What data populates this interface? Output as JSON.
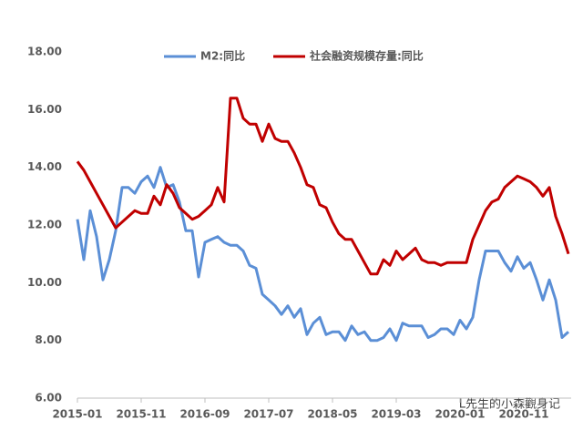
{
  "chart_data": {
    "type": "line",
    "categories": [
      "2015-01",
      null,
      null,
      null,
      null,
      null,
      null,
      null,
      null,
      null,
      "2015-11",
      null,
      null,
      null,
      null,
      null,
      null,
      null,
      null,
      null,
      "2016-09",
      null,
      null,
      null,
      null,
      null,
      null,
      null,
      null,
      null,
      "2017-07",
      null,
      null,
      null,
      null,
      null,
      null,
      null,
      null,
      null,
      "2018-05",
      null,
      null,
      null,
      null,
      null,
      null,
      null,
      null,
      null,
      "2019-03",
      null,
      null,
      null,
      null,
      null,
      null,
      null,
      null,
      null,
      "2020-01",
      null,
      null,
      null,
      null,
      null,
      null,
      null,
      null,
      null,
      "2020-11",
      null,
      null,
      null,
      null,
      null,
      null,
      null
    ],
    "series": [
      {
        "name": "M2:同比",
        "color": "#5b8fd6",
        "values": [
          12.2,
          10.8,
          12.5,
          11.6,
          10.1,
          10.8,
          11.8,
          13.3,
          13.3,
          13.1,
          13.5,
          13.7,
          13.3,
          14.0,
          13.3,
          13.4,
          12.8,
          11.8,
          11.8,
          10.2,
          11.4,
          11.5,
          11.6,
          11.4,
          11.3,
          11.3,
          11.1,
          10.6,
          10.5,
          9.6,
          9.4,
          9.2,
          8.9,
          9.2,
          8.8,
          9.1,
          8.2,
          8.6,
          8.8,
          8.2,
          8.3,
          8.3,
          8.0,
          8.5,
          8.2,
          8.3,
          8.0,
          8.0,
          8.1,
          8.4,
          8.0,
          8.6,
          8.5,
          8.5,
          8.5,
          8.1,
          8.2,
          8.4,
          8.4,
          8.2,
          8.7,
          8.4,
          8.8,
          10.1,
          11.1,
          11.1,
          11.1,
          10.7,
          10.4,
          10.9,
          10.5,
          10.7,
          10.1,
          9.4,
          10.1,
          9.4,
          8.1,
          8.3
        ]
      },
      {
        "name": "社会融资规模存量:同比",
        "color": "#c00000",
        "values": [
          14.2,
          13.9,
          13.5,
          13.1,
          12.7,
          12.3,
          11.9,
          12.1,
          12.3,
          12.5,
          12.4,
          12.4,
          13.0,
          12.7,
          13.4,
          13.1,
          12.6,
          12.4,
          12.2,
          12.3,
          12.5,
          12.7,
          13.3,
          12.8,
          16.4,
          16.4,
          15.7,
          15.5,
          15.5,
          14.9,
          15.5,
          15.0,
          14.9,
          14.9,
          14.5,
          14.0,
          13.4,
          13.3,
          12.7,
          12.6,
          12.1,
          11.7,
          11.5,
          11.5,
          11.1,
          10.7,
          10.3,
          10.3,
          10.8,
          10.6,
          11.1,
          10.8,
          11.0,
          11.2,
          10.8,
          10.7,
          10.7,
          10.6,
          10.7,
          10.7,
          10.7,
          10.7,
          11.5,
          12.0,
          12.5,
          12.8,
          12.9,
          13.3,
          13.5,
          13.7,
          13.6,
          13.5,
          13.3,
          13.0,
          13.3,
          12.3,
          11.7,
          11.0
        ]
      }
    ],
    "ylim": [
      6,
      18
    ],
    "yticks": [
      {
        "value": 6,
        "label": "6.00"
      },
      {
        "value": 8,
        "label": "8.00"
      },
      {
        "value": 10,
        "label": "10.00"
      },
      {
        "value": 12,
        "label": "12.00"
      },
      {
        "value": 14,
        "label": "14.00"
      },
      {
        "value": 16,
        "label": "16.00"
      },
      {
        "value": 18,
        "label": "18.00"
      }
    ],
    "legend": "top",
    "watermark": "L先生的小森觀身记"
  }
}
